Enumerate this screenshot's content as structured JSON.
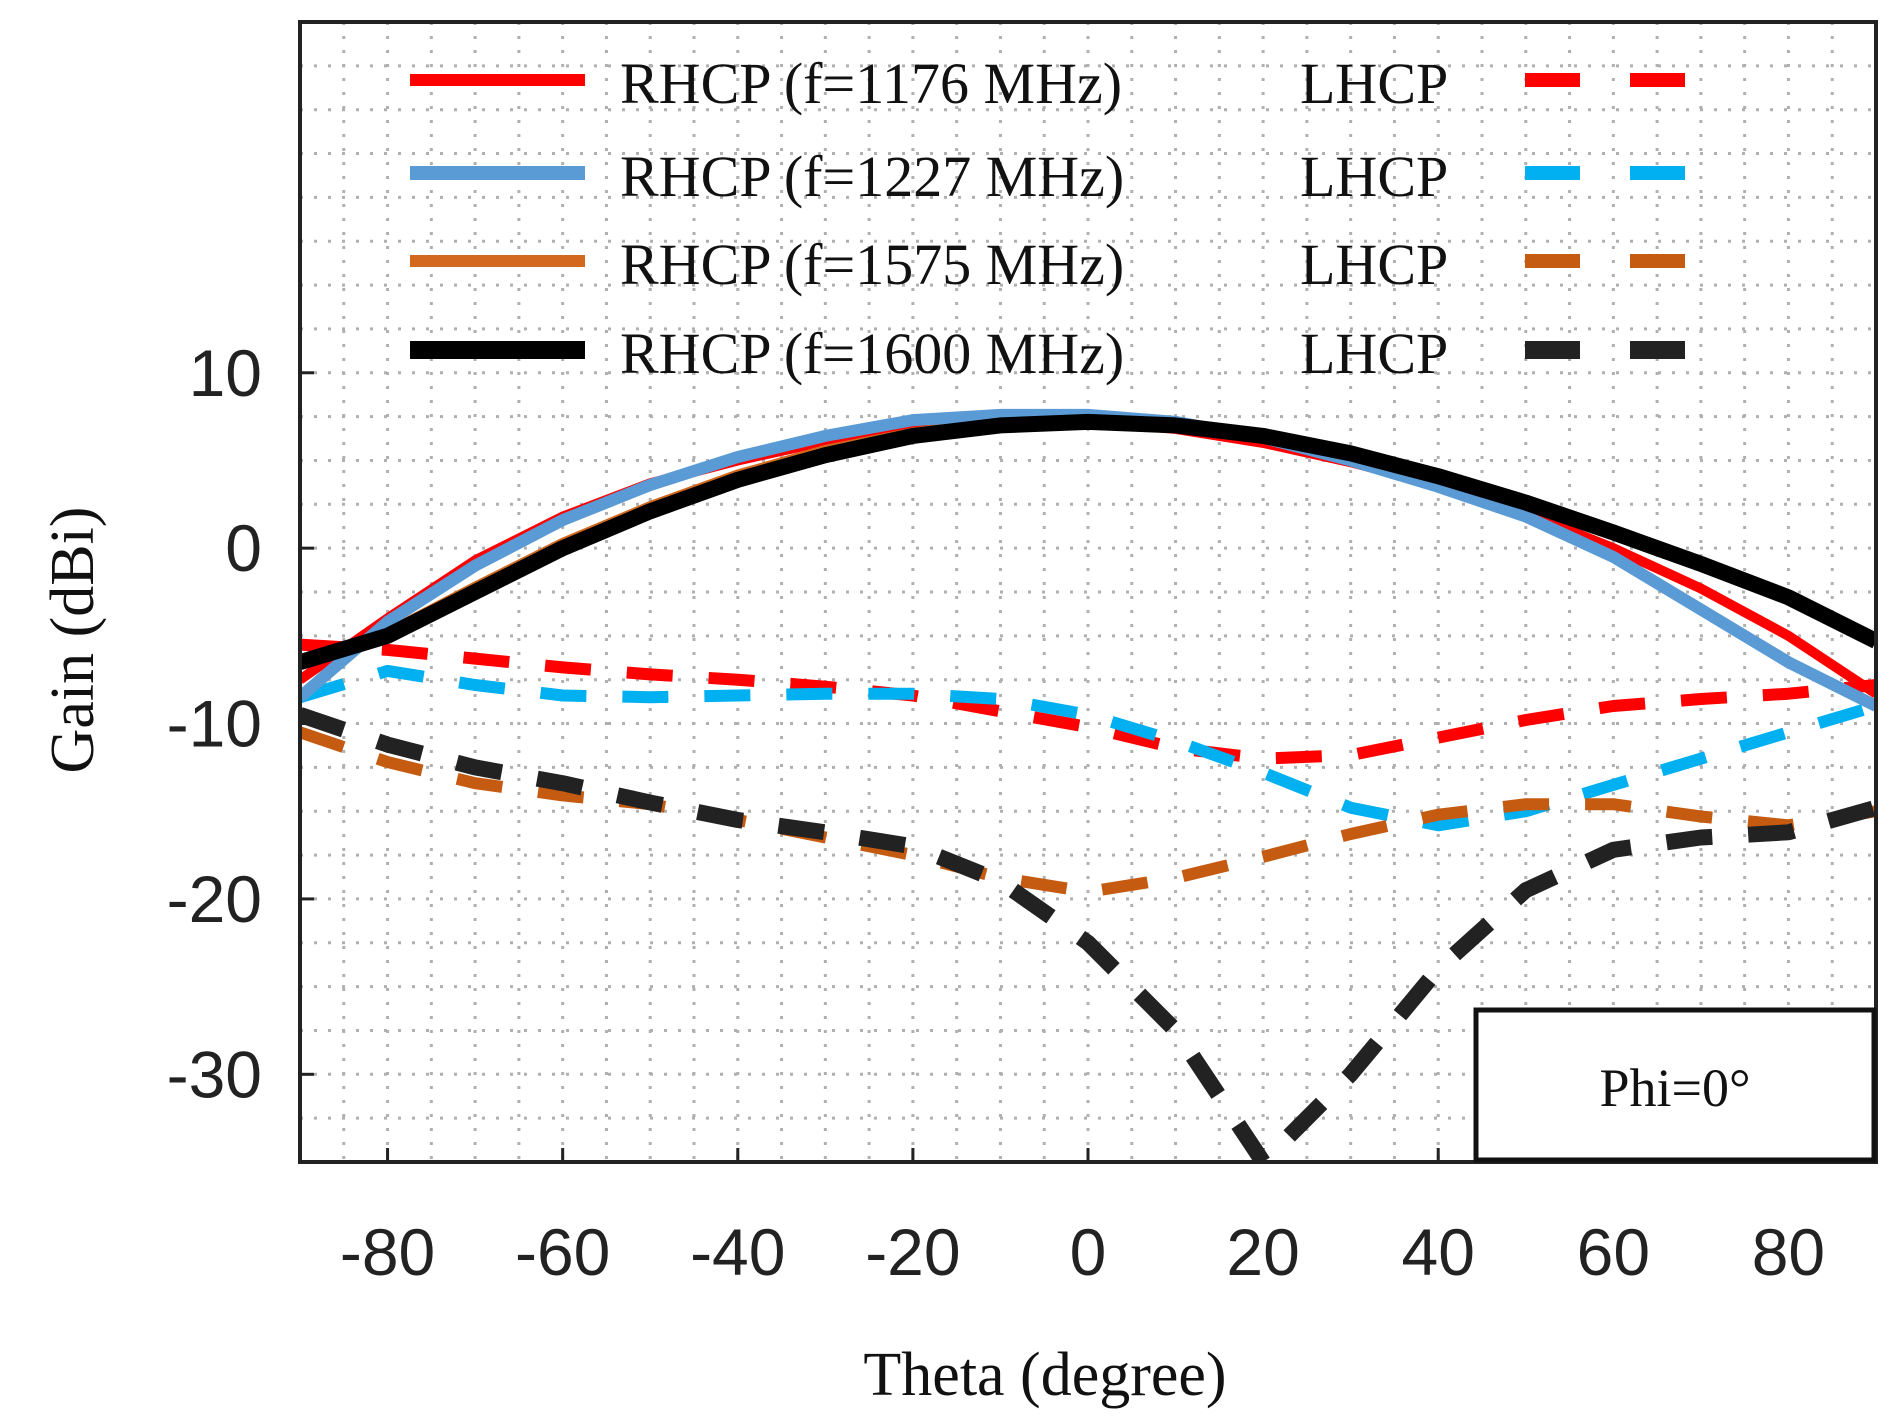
{
  "chart_data": {
    "type": "line",
    "title": "",
    "xlabel": "Theta (degree)",
    "ylabel": "Gain (dBi)",
    "xlim": [
      -90,
      90
    ],
    "ylim": [
      -35,
      30
    ],
    "xticks": [
      -80,
      -60,
      -40,
      -20,
      0,
      20,
      40,
      60,
      80
    ],
    "yticks": [
      10,
      0,
      -10,
      -20,
      -30
    ],
    "grid": true,
    "legend_position": "top",
    "annotation": "Phi=0°",
    "x": [
      -90,
      -80,
      -70,
      -60,
      -50,
      -40,
      -30,
      -20,
      -10,
      0,
      10,
      20,
      30,
      40,
      50,
      60,
      70,
      80,
      90
    ],
    "series": [
      {
        "name": "RHCP (f=1176 MHz)",
        "color": "#ff0000",
        "dash": "solid",
        "width": 10,
        "values": [
          -7.5,
          -4.0,
          -0.7,
          1.8,
          3.7,
          5.0,
          6.1,
          6.9,
          7.2,
          7.2,
          6.8,
          6.0,
          4.9,
          3.6,
          2.0,
          0.0,
          -2.3,
          -5.0,
          -8.3
        ]
      },
      {
        "name": "RHCP (f=1227 MHz)",
        "color": "#5b9bd5",
        "dash": "solid",
        "width": 12,
        "values": [
          -8.5,
          -4.2,
          -1.0,
          1.6,
          3.6,
          5.2,
          6.4,
          7.3,
          7.6,
          7.6,
          7.2,
          6.3,
          5.0,
          3.5,
          1.8,
          -0.5,
          -3.5,
          -6.5,
          -9.0
        ]
      },
      {
        "name": "RHCP (f=1575 MHz)",
        "color": "#d2691e",
        "dash": "solid",
        "width": 10,
        "values": [
          -6.5,
          -4.8,
          -2.2,
          0.3,
          2.4,
          4.2,
          5.6,
          6.6,
          7.2,
          7.4,
          7.2,
          6.5,
          5.4,
          4.0,
          2.5,
          0.8,
          -0.8,
          -2.8,
          -5.3
        ]
      },
      {
        "name": "RHCP (f=1600 MHz)",
        "color": "#000000",
        "dash": "solid",
        "width": 16,
        "values": [
          -6.5,
          -5.0,
          -2.5,
          0.0,
          2.1,
          3.9,
          5.3,
          6.4,
          7.0,
          7.2,
          7.0,
          6.4,
          5.4,
          4.1,
          2.6,
          0.9,
          -0.9,
          -2.8,
          -5.3
        ]
      },
      {
        "name": "LHCP (f=1176 MHz)",
        "color": "#ff0000",
        "dash": "dashed",
        "width": 12,
        "values": [
          -5.5,
          -5.8,
          -6.3,
          -6.8,
          -7.2,
          -7.5,
          -7.9,
          -8.4,
          -9.3,
          -10.2,
          -11.4,
          -12.0,
          -11.8,
          -10.8,
          -9.8,
          -9.0,
          -8.6,
          -8.3,
          -7.8
        ]
      },
      {
        "name": "LHCP (f=1227 MHz)",
        "color": "#00b0f0",
        "dash": "dashed",
        "width": 12,
        "values": [
          -8.5,
          -7.0,
          -7.8,
          -8.4,
          -8.5,
          -8.4,
          -8.3,
          -8.3,
          -8.6,
          -9.5,
          -11.0,
          -12.8,
          -14.8,
          -15.8,
          -15.0,
          -13.5,
          -12.0,
          -10.5,
          -9.0
        ]
      },
      {
        "name": "LHCP (f=1575 MHz)",
        "color": "#c55a11",
        "dash": "dashed",
        "width": 12,
        "values": [
          -10.5,
          -12.2,
          -13.4,
          -14.1,
          -14.6,
          -15.5,
          -16.5,
          -17.5,
          -18.8,
          -19.6,
          -18.8,
          -17.6,
          -16.3,
          -15.2,
          -14.6,
          -14.6,
          -15.3,
          -15.8,
          -15.0
        ]
      },
      {
        "name": "LHCP (f=1600 MHz)",
        "color": "#222222",
        "dash": "dashed",
        "width": 16,
        "values": [
          -9.5,
          -11.2,
          -12.5,
          -13.4,
          -14.5,
          -15.5,
          -16.2,
          -17.0,
          -19.0,
          -22.5,
          -27.5,
          -35.0,
          -30.0,
          -24.0,
          -19.5,
          -17.2,
          -16.5,
          -16.2,
          -14.8
        ]
      }
    ]
  }
}
